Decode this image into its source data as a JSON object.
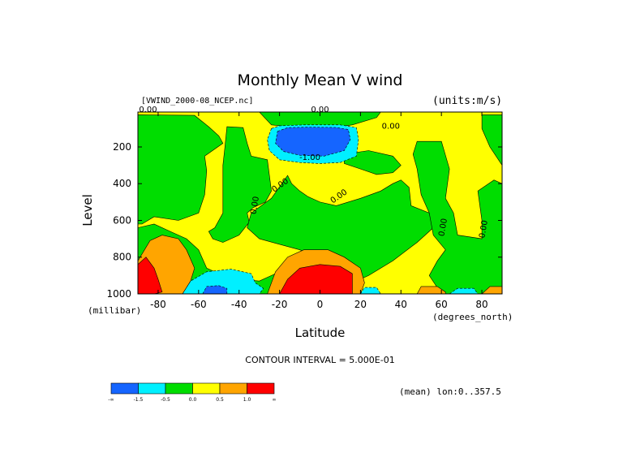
{
  "chart_data": {
    "type": "heatmap",
    "title": "Monthly Mean V wind",
    "dataset": "[VWIND_2000-08_NCEP.nc]",
    "units": "(units:m/s)",
    "xlabel": "Latitude",
    "x_units": "(degrees_north)",
    "ylabel": "Level",
    "y_units": "(millibar)",
    "x_range": [
      -90,
      90
    ],
    "y_range": [
      1000,
      10
    ],
    "x_ticks": [
      "-80",
      "-60",
      "-40",
      "-20",
      "0",
      "20",
      "40",
      "60",
      "80"
    ],
    "y_ticks": [
      "200",
      "400",
      "600",
      "800",
      "1000"
    ],
    "contour_interval": "CONTOUR INTERVAL = 5.000E-01",
    "subset": "(mean) lon:0..357.5",
    "colorbar": {
      "labels": [
        "-∞",
        "-1.5",
        "-0.5",
        "0.0",
        "0.5",
        "1.0",
        "∞"
      ],
      "colors": [
        "#1565ff",
        "#00f0ff",
        "#00dd00",
        "#ffff00",
        "#ffa500",
        "#ff0000"
      ]
    },
    "contour_labels": [
      "0.00",
      "0.00",
      "-1.00",
      "0.00",
      "0.00",
      "0.00",
      "0.00",
      "0.00",
      "0.00"
    ],
    "regions": [
      {
        "name": "north-yellow",
        "level": "0.0 to 0.5",
        "points": [
          [
            -90,
            10
          ],
          [
            90,
            10
          ],
          [
            90,
            1000
          ],
          [
            -90,
            1000
          ]
        ]
      },
      {
        "name": "green-southwest",
        "level": "-0.5 to 0.0",
        "points": [
          [
            -90,
            25
          ],
          [
            -62,
            28
          ],
          [
            -55,
            90
          ],
          [
            -50,
            140
          ],
          [
            -48,
            180
          ],
          [
            -57,
            250
          ],
          [
            -56,
            330
          ],
          [
            -57,
            460
          ],
          [
            -60,
            560
          ],
          [
            -70,
            600
          ],
          [
            -82,
            580
          ],
          [
            -88,
            620
          ],
          [
            -90,
            620
          ]
        ]
      },
      {
        "name": "green-southmid",
        "level": "-0.5 to 0.0",
        "points": [
          [
            -46,
            90
          ],
          [
            -38,
            95
          ],
          [
            -36,
            180
          ],
          [
            -34,
            250
          ],
          [
            -26,
            270
          ],
          [
            -24,
            440
          ],
          [
            -27,
            500
          ],
          [
            -33,
            530
          ],
          [
            -36,
            560
          ],
          [
            -35,
            610
          ],
          [
            -40,
            680
          ],
          [
            -48,
            720
          ],
          [
            -53,
            700
          ],
          [
            -55,
            660
          ],
          [
            -52,
            640
          ],
          [
            -48,
            560
          ],
          [
            -48,
            420
          ],
          [
            -48,
            300
          ],
          [
            -47,
            200
          ]
        ]
      },
      {
        "name": "green-center",
        "level": "-0.5 to 0.0",
        "points": [
          [
            -16,
            355
          ],
          [
            -14,
            400
          ],
          [
            -10,
            440
          ],
          [
            -6,
            470
          ],
          [
            0,
            500
          ],
          [
            8,
            520
          ],
          [
            20,
            480
          ],
          [
            30,
            440
          ],
          [
            36,
            400
          ],
          [
            40,
            380
          ],
          [
            44,
            420
          ],
          [
            45,
            520
          ],
          [
            54,
            560
          ],
          [
            56,
            640
          ],
          [
            48,
            720
          ],
          [
            36,
            820
          ],
          [
            24,
            900
          ],
          [
            16,
            940
          ],
          [
            4,
            820
          ],
          [
            -10,
            760
          ],
          [
            -20,
            730
          ],
          [
            -30,
            700
          ],
          [
            -36,
            640
          ],
          [
            -34,
            560
          ],
          [
            -24,
            480
          ]
        ]
      },
      {
        "name": "green-east-a",
        "level": "-0.5 to 0.0",
        "points": [
          [
            12,
            240
          ],
          [
            24,
            220
          ],
          [
            36,
            250
          ],
          [
            40,
            300
          ],
          [
            36,
            340
          ],
          [
            28,
            350
          ],
          [
            20,
            320
          ],
          [
            12,
            290
          ]
        ]
      },
      {
        "name": "green-east-b",
        "level": "-0.5 to 0.0",
        "points": [
          [
            48,
            170
          ],
          [
            60,
            170
          ],
          [
            64,
            320
          ],
          [
            62,
            480
          ],
          [
            66,
            560
          ],
          [
            68,
            680
          ],
          [
            80,
            700
          ],
          [
            80,
            600
          ],
          [
            78,
            440
          ],
          [
            86,
            380
          ],
          [
            90,
            400
          ],
          [
            90,
            1000
          ],
          [
            60,
            1000
          ],
          [
            54,
            900
          ],
          [
            58,
            820
          ],
          [
            62,
            760
          ],
          [
            56,
            680
          ],
          [
            54,
            560
          ],
          [
            50,
            460
          ],
          [
            48,
            320
          ],
          [
            46,
            240
          ]
        ]
      },
      {
        "name": "green-top",
        "level": "-0.5 to 0.0",
        "points": [
          [
            -30,
            10
          ],
          [
            30,
            10
          ],
          [
            28,
            40
          ],
          [
            16,
            80
          ],
          [
            6,
            95
          ],
          [
            -10,
            95
          ],
          [
            -24,
            80
          ]
        ]
      },
      {
        "name": "green-far-east",
        "level": "-0.5 to 0.0",
        "points": [
          [
            80,
            25
          ],
          [
            90,
            25
          ],
          [
            90,
            300
          ],
          [
            84,
            200
          ],
          [
            80,
            100
          ]
        ]
      },
      {
        "name": "green-bottom-left",
        "level": "-0.5 to 0.0",
        "points": [
          [
            -90,
            640
          ],
          [
            -82,
            620
          ],
          [
            -74,
            660
          ],
          [
            -66,
            700
          ],
          [
            -60,
            760
          ],
          [
            -56,
            860
          ],
          [
            -48,
            900
          ],
          [
            -40,
            920
          ],
          [
            -30,
            930
          ],
          [
            -24,
            900
          ],
          [
            -20,
            880
          ],
          [
            -24,
            1000
          ],
          [
            -90,
            1000
          ]
        ]
      },
      {
        "name": "cyan-top",
        "level": "-1.5 to -0.5",
        "points": [
          [
            -24,
            100
          ],
          [
            -20,
            85
          ],
          [
            -8,
            80
          ],
          [
            10,
            80
          ],
          [
            18,
            95
          ],
          [
            19,
            160
          ],
          [
            18,
            250
          ],
          [
            10,
            285
          ],
          [
            0,
            290
          ],
          [
            -10,
            285
          ],
          [
            -20,
            270
          ],
          [
            -25,
            220
          ],
          [
            -26,
            160
          ]
        ]
      },
      {
        "name": "blue-top",
        "level": "< -1.5",
        "points": [
          [
            -21,
            115
          ],
          [
            -16,
            95
          ],
          [
            -6,
            92
          ],
          [
            8,
            94
          ],
          [
            14,
            105
          ],
          [
            15,
            160
          ],
          [
            12,
            220
          ],
          [
            2,
            250
          ],
          [
            -10,
            245
          ],
          [
            -18,
            225
          ],
          [
            -22,
            180
          ]
        ]
      },
      {
        "name": "cyan-bottom",
        "level": "-1.5 to -0.5",
        "points": [
          [
            -68,
            1000
          ],
          [
            -64,
            930
          ],
          [
            -56,
            880
          ],
          [
            -44,
            865
          ],
          [
            -34,
            890
          ],
          [
            -32,
            940
          ],
          [
            -28,
            970
          ],
          [
            -30,
            1000
          ]
        ]
      },
      {
        "name": "blue-bottom",
        "level": "< -1.5",
        "points": [
          [
            -58,
            1000
          ],
          [
            -56,
            960
          ],
          [
            -50,
            955
          ],
          [
            -46,
            970
          ],
          [
            -46,
            1000
          ]
        ]
      },
      {
        "name": "orange-center",
        "level": "0.5 to 1.0",
        "points": [
          [
            -26,
            1000
          ],
          [
            -22,
            880
          ],
          [
            -16,
            800
          ],
          [
            -8,
            760
          ],
          [
            4,
            760
          ],
          [
            12,
            800
          ],
          [
            20,
            860
          ],
          [
            22,
            940
          ],
          [
            20,
            1000
          ]
        ]
      },
      {
        "name": "red-center",
        "level": "> 1.0",
        "points": [
          [
            -20,
            1000
          ],
          [
            -16,
            920
          ],
          [
            -10,
            860
          ],
          [
            0,
            840
          ],
          [
            10,
            850
          ],
          [
            16,
            890
          ],
          [
            16,
            1000
          ]
        ]
      },
      {
        "name": "orange-left",
        "level": "0.5 to 1.0",
        "points": [
          [
            -90,
            820
          ],
          [
            -84,
            710
          ],
          [
            -78,
            680
          ],
          [
            -70,
            700
          ],
          [
            -66,
            760
          ],
          [
            -62,
            860
          ],
          [
            -64,
            930
          ],
          [
            -68,
            1000
          ],
          [
            -90,
            1000
          ]
        ]
      },
      {
        "name": "red-left",
        "level": "> 1.0",
        "points": [
          [
            -90,
            840
          ],
          [
            -86,
            800
          ],
          [
            -82,
            860
          ],
          [
            -80,
            920
          ],
          [
            -78,
            990
          ],
          [
            -82,
            1000
          ],
          [
            -90,
            1000
          ]
        ]
      },
      {
        "name": "orange-right-1",
        "level": "0.5 to 1.0",
        "points": [
          [
            48,
            1000
          ],
          [
            50,
            960
          ],
          [
            58,
            960
          ],
          [
            62,
            990
          ],
          [
            62,
            1000
          ]
        ]
      },
      {
        "name": "orange-right-2",
        "level": "0.5 to 1.0",
        "points": [
          [
            80,
            1000
          ],
          [
            84,
            960
          ],
          [
            90,
            960
          ],
          [
            90,
            1000
          ]
        ]
      },
      {
        "name": "cyan-bottom-east",
        "level": "-1.5 to -0.5",
        "points": [
          [
            20,
            1000
          ],
          [
            22,
            965
          ],
          [
            28,
            965
          ],
          [
            30,
            1000
          ]
        ]
      },
      {
        "name": "cyan-bottom-east-2",
        "level": "-1.5 to -0.5",
        "points": [
          [
            64,
            1000
          ],
          [
            68,
            970
          ],
          [
            76,
            970
          ],
          [
            78,
            1000
          ]
        ]
      }
    ]
  }
}
